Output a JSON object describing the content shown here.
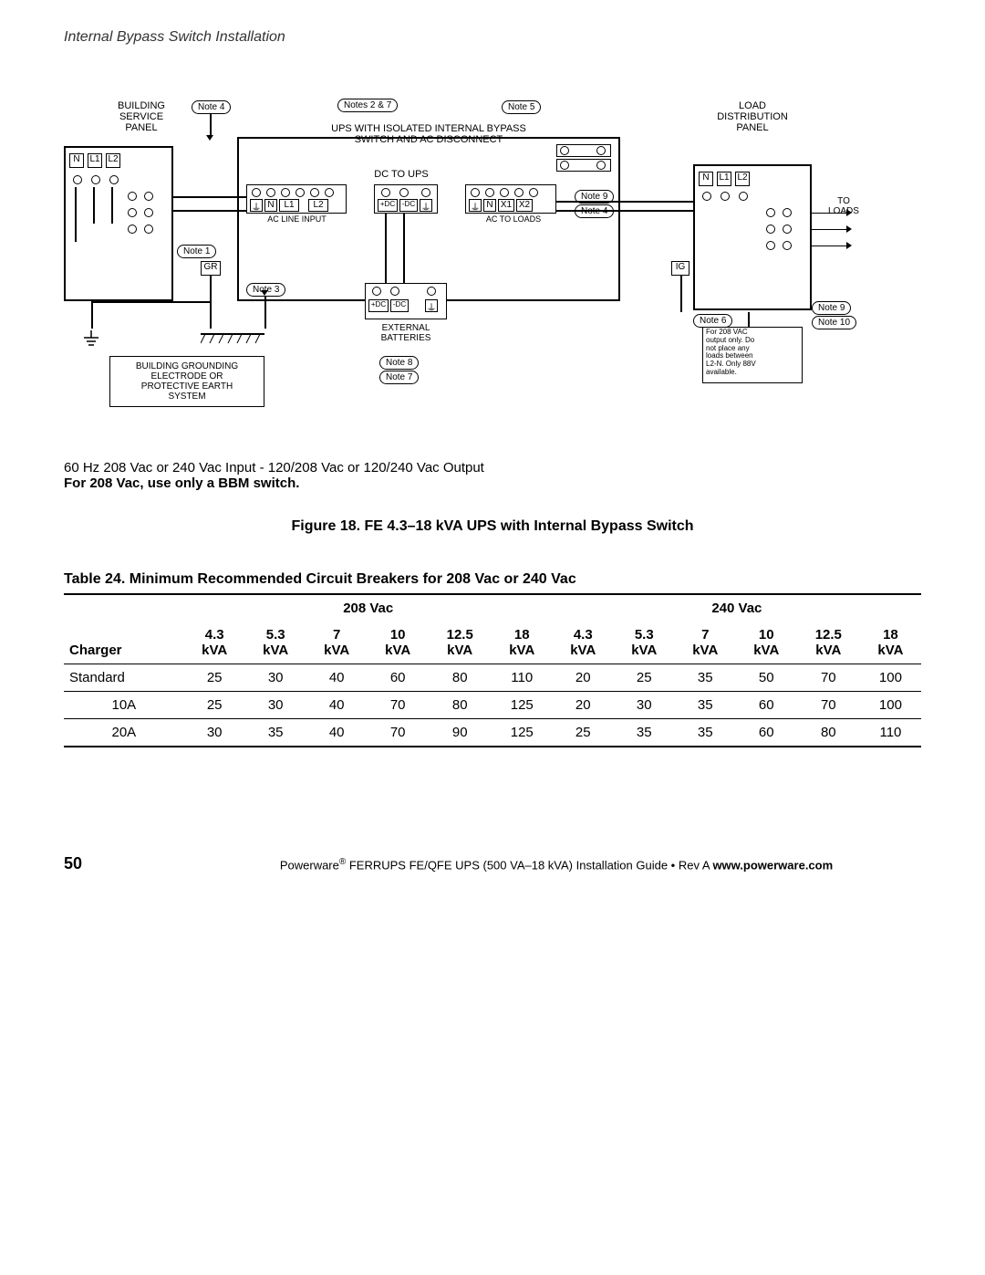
{
  "header": "Internal Bypass Switch Installation",
  "diagram": {
    "building_service": "BUILDING\nSERVICE\nPANEL",
    "ups_title": "UPS WITH ISOLATED INTERNAL BYPASS\nSWITCH AND AC DISCONNECT",
    "load_dist": "LOAD\nDISTRIBUTION\nPANEL",
    "dc_to_ups": "DC TO UPS",
    "ac_line_input": "AC LINE INPUT",
    "ac_to_loads": "AC TO LOADS",
    "to_loads": "TO\nLOADS",
    "external_batteries": "EXTERNAL\nBATTERIES",
    "grounding": "BUILDING  GROUNDING\nELECTRODE  OR\nPROTECTIVE EARTH\nSYSTEM",
    "note1": "Note  1",
    "note2_7": "Notes  2  &  7",
    "note3": "Note  3",
    "note4": "Note  4",
    "note5": "Note  5",
    "note6": "Note  6",
    "note7": "Note  7",
    "note8": "Note  8",
    "note9": "Note  9",
    "note10": "Note  10",
    "gr": "GR",
    "ig": "IG",
    "n": "N",
    "l1": "L1",
    "l2": "L2",
    "x1": "X1",
    "x2": "X2",
    "plus_dc": "+DC",
    "minus_dc": "-DC",
    "gnd": "⏚",
    "warning_208": "For 208 VAC\noutput only.  Do\nnot place any\nloads between\nL2-N.  Only 88V\navailable."
  },
  "caption": {
    "line1": "60 Hz 208 Vac or 240 Vac Input - 120/208 Vac or 120/240 Vac Output",
    "line2": "For 208 Vac, use only a BBM switch."
  },
  "figure_title": "Figure 18. FE 4.3–18 kVA UPS with Internal Bypass Switch",
  "table": {
    "title": "Table 24. Minimum Recommended Circuit Breakers for 208 Vac or 240 Vac",
    "group_headers": [
      "208 Vac",
      "240 Vac"
    ],
    "row_header_col": "Charger",
    "col_headers": [
      "4.3\nkVA",
      "5.3\nkVA",
      "7\nkVA",
      "10\nkVA",
      "12.5\nkVA",
      "18\nkVA",
      "4.3\nkVA",
      "5.3\nkVA",
      "7\nkVA",
      "10\nkVA",
      "12.5\nkVA",
      "18\nkVA"
    ],
    "rows": [
      {
        "label": "Standard",
        "values": [
          25,
          30,
          40,
          60,
          80,
          110,
          20,
          25,
          35,
          50,
          70,
          100
        ]
      },
      {
        "label": "10A",
        "values": [
          25,
          30,
          40,
          70,
          80,
          125,
          20,
          30,
          35,
          60,
          70,
          100
        ]
      },
      {
        "label": "20A",
        "values": [
          30,
          35,
          40,
          70,
          90,
          125,
          25,
          35,
          35,
          60,
          80,
          110
        ]
      }
    ]
  },
  "footer": {
    "page": "50",
    "text_prefix": "Powerware",
    "text_mid": " FERRUPS FE/QFE UPS (500 VA–18 kVA) Installation Guide  •  Rev A ",
    "url": "www.powerware.com"
  }
}
